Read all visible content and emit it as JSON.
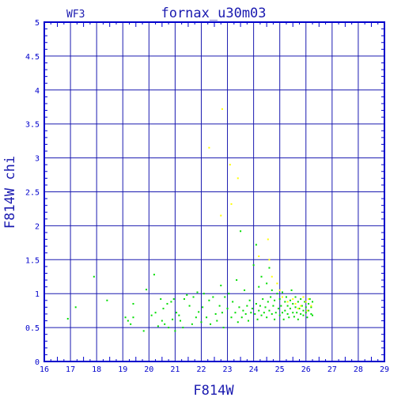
{
  "chart_data": {
    "type": "scatter",
    "title": "fornax_u30m03",
    "corner_label": "WF3",
    "xlabel": "F814W",
    "ylabel": "F814W chi",
    "xlim": [
      16,
      29
    ],
    "ylim": [
      0,
      5
    ],
    "x_ticks": [
      "16",
      "17",
      "18",
      "19",
      "20",
      "21",
      "22",
      "23",
      "24",
      "25",
      "26",
      "27",
      "28",
      "29"
    ],
    "y_ticks": [
      "0",
      "0.5",
      "1",
      "1.5",
      "2",
      "2.5",
      "3",
      "3.5",
      "4",
      "4.5",
      "5"
    ],
    "grid": true,
    "colors": {
      "axes": "#0000cc",
      "grid": "#1a1ab0",
      "green": "#00dd00",
      "yellow": "#ffff00"
    },
    "series": [
      {
        "color": "green",
        "points": [
          [
            16.9,
            0.63
          ],
          [
            17.2,
            0.8
          ],
          [
            17.9,
            1.25
          ],
          [
            18.4,
            0.9
          ],
          [
            19.1,
            0.65
          ],
          [
            19.2,
            0.6
          ],
          [
            19.3,
            0.55
          ],
          [
            19.4,
            0.85
          ],
          [
            19.4,
            0.65
          ],
          [
            19.8,
            0.45
          ],
          [
            19.9,
            1.06
          ],
          [
            20.1,
            0.68
          ],
          [
            20.2,
            1.28
          ],
          [
            20.25,
            0.72
          ],
          [
            20.35,
            0.52
          ],
          [
            20.45,
            0.92
          ],
          [
            20.5,
            0.6
          ],
          [
            20.55,
            0.78
          ],
          [
            20.6,
            0.55
          ],
          [
            20.7,
            0.85
          ],
          [
            20.75,
            0.5
          ],
          [
            20.85,
            0.88
          ],
          [
            20.9,
            0.62
          ],
          [
            20.95,
            0.92
          ],
          [
            21.0,
            0.45
          ],
          [
            21.05,
            0.72
          ],
          [
            21.15,
            0.68
          ],
          [
            21.2,
            0.6
          ],
          [
            21.3,
            0.5
          ],
          [
            21.35,
            0.92
          ],
          [
            21.45,
            0.98
          ],
          [
            21.55,
            0.82
          ],
          [
            21.65,
            0.55
          ],
          [
            21.7,
            0.95
          ],
          [
            21.8,
            0.65
          ],
          [
            21.85,
            1.02
          ],
          [
            21.9,
            0.73
          ],
          [
            22.0,
            0.58
          ],
          [
            22.05,
            0.8
          ],
          [
            22.1,
            1.0
          ],
          [
            22.2,
            0.65
          ],
          [
            22.3,
            0.9
          ],
          [
            22.35,
            0.55
          ],
          [
            22.45,
            0.95
          ],
          [
            22.55,
            0.7
          ],
          [
            22.6,
            0.6
          ],
          [
            22.7,
            0.82
          ],
          [
            22.75,
            1.12
          ],
          [
            22.8,
            0.72
          ],
          [
            22.85,
            0.5
          ],
          [
            22.9,
            0.95
          ],
          [
            23.0,
            0.78
          ],
          [
            23.05,
            1.0
          ],
          [
            23.15,
            0.65
          ],
          [
            23.2,
            0.88
          ],
          [
            23.3,
            0.72
          ],
          [
            23.35,
            1.2
          ],
          [
            23.4,
            0.58
          ],
          [
            23.45,
            0.8
          ],
          [
            23.5,
            1.92
          ],
          [
            23.55,
            0.65
          ],
          [
            23.6,
            0.75
          ],
          [
            23.65,
            1.05
          ],
          [
            23.7,
            0.7
          ],
          [
            23.75,
            0.82
          ],
          [
            23.8,
            0.6
          ],
          [
            23.85,
            0.9
          ],
          [
            23.9,
            0.72
          ],
          [
            23.95,
            0.78
          ],
          [
            24.0,
            1.42
          ],
          [
            24.05,
            0.7
          ],
          [
            24.1,
            1.72
          ],
          [
            24.1,
            0.85
          ],
          [
            24.15,
            0.62
          ],
          [
            24.2,
            0.75
          ],
          [
            24.2,
            1.1
          ],
          [
            24.25,
            0.82
          ],
          [
            24.3,
            0.68
          ],
          [
            24.3,
            1.25
          ],
          [
            24.35,
            0.92
          ],
          [
            24.4,
            0.72
          ],
          [
            24.45,
            0.8
          ],
          [
            24.5,
            1.15
          ],
          [
            24.5,
            0.65
          ],
          [
            24.55,
            0.88
          ],
          [
            24.6,
            1.38
          ],
          [
            24.6,
            0.75
          ],
          [
            24.65,
            0.95
          ],
          [
            24.7,
            0.7
          ],
          [
            24.7,
            1.05
          ],
          [
            24.75,
            0.82
          ],
          [
            24.8,
            0.62
          ],
          [
            24.8,
            0.9
          ],
          [
            24.85,
            0.72
          ],
          [
            24.9,
            1.0
          ],
          [
            24.95,
            0.78
          ],
          [
            25.0,
            0.68
          ],
          [
            25.0,
            0.92
          ],
          [
            25.05,
            0.82
          ],
          [
            25.1,
            0.72
          ],
          [
            25.1,
            1.02
          ],
          [
            25.15,
            0.62
          ],
          [
            25.2,
            0.88
          ],
          [
            25.2,
            0.75
          ],
          [
            25.25,
            0.95
          ],
          [
            25.3,
            0.7
          ],
          [
            25.3,
            0.82
          ],
          [
            25.35,
            0.65
          ],
          [
            25.4,
            0.9
          ],
          [
            25.4,
            0.78
          ],
          [
            25.45,
            1.05
          ],
          [
            25.5,
            0.72
          ],
          [
            25.5,
            0.85
          ],
          [
            25.55,
            0.66
          ],
          [
            25.6,
            0.8
          ],
          [
            25.6,
            0.95
          ],
          [
            25.65,
            0.72
          ],
          [
            25.7,
            0.88
          ],
          [
            25.7,
            0.62
          ],
          [
            25.75,
            0.78
          ],
          [
            25.8,
            0.7
          ],
          [
            25.8,
            0.92
          ],
          [
            25.85,
            0.82
          ],
          [
            25.9,
            0.68
          ],
          [
            25.9,
            0.75
          ],
          [
            25.95,
            0.88
          ],
          [
            26.0,
            0.72
          ],
          [
            26.0,
            0.8
          ],
          [
            26.05,
            0.65
          ],
          [
            26.1,
            0.85
          ],
          [
            26.1,
            0.75
          ],
          [
            26.15,
            0.92
          ],
          [
            26.2,
            0.7
          ],
          [
            26.2,
            0.8
          ],
          [
            26.25,
            0.68
          ],
          [
            26.25,
            0.88
          ]
        ]
      },
      {
        "color": "yellow",
        "points": [
          [
            22.3,
            3.15
          ],
          [
            22.8,
            3.72
          ],
          [
            23.1,
            2.9
          ],
          [
            23.15,
            2.32
          ],
          [
            23.4,
            2.7
          ],
          [
            22.75,
            2.15
          ],
          [
            24.2,
            1.55
          ],
          [
            24.55,
            1.8
          ],
          [
            24.6,
            1.5
          ],
          [
            24.7,
            1.25
          ],
          [
            24.9,
            1.15
          ],
          [
            25.0,
            1.05
          ],
          [
            25.1,
            0.95
          ],
          [
            25.3,
            0.88
          ],
          [
            25.5,
            0.92
          ],
          [
            25.6,
            0.85
          ],
          [
            25.7,
            0.78
          ],
          [
            25.8,
            0.82
          ],
          [
            25.9,
            0.95
          ],
          [
            26.0,
            0.88
          ],
          [
            26.05,
            0.75
          ],
          [
            26.1,
            0.92
          ],
          [
            26.2,
            0.82
          ]
        ]
      }
    ]
  }
}
